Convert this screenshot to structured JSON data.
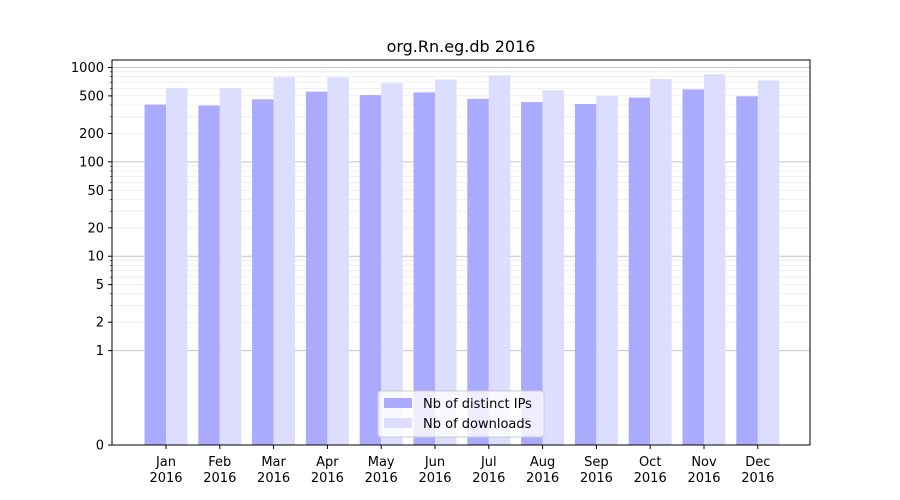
{
  "chart_data": {
    "type": "bar",
    "title": "org.Rn.eg.db 2016",
    "xlabel": "",
    "ylabel": "",
    "y_scale": "symlog",
    "ylim": [
      0,
      1200
    ],
    "y_ticks": [
      0,
      1,
      2,
      5,
      10,
      20,
      50,
      100,
      200,
      500,
      1000
    ],
    "y_tick_labels": [
      "0",
      "1",
      "2",
      "5",
      "10",
      "20",
      "50",
      "100",
      "200",
      "500",
      "1000"
    ],
    "categories": [
      {
        "month": "Jan",
        "year": "2016"
      },
      {
        "month": "Feb",
        "year": "2016"
      },
      {
        "month": "Mar",
        "year": "2016"
      },
      {
        "month": "Apr",
        "year": "2016"
      },
      {
        "month": "May",
        "year": "2016"
      },
      {
        "month": "Jun",
        "year": "2016"
      },
      {
        "month": "Jul",
        "year": "2016"
      },
      {
        "month": "Aug",
        "year": "2016"
      },
      {
        "month": "Sep",
        "year": "2016"
      },
      {
        "month": "Oct",
        "year": "2016"
      },
      {
        "month": "Nov",
        "year": "2016"
      },
      {
        "month": "Dec",
        "year": "2016"
      }
    ],
    "series": [
      {
        "name": "Nb of distinct IPs",
        "color": "#aaaaff",
        "values": [
          405,
          395,
          460,
          555,
          510,
          545,
          465,
          430,
          410,
          480,
          585,
          495
        ]
      },
      {
        "name": "Nb of downloads",
        "color": "#ddddff",
        "values": [
          600,
          600,
          785,
          785,
          680,
          745,
          825,
          575,
          505,
          755,
          850,
          730
        ]
      }
    ],
    "grid": true,
    "legend_position": "bottom-center"
  }
}
